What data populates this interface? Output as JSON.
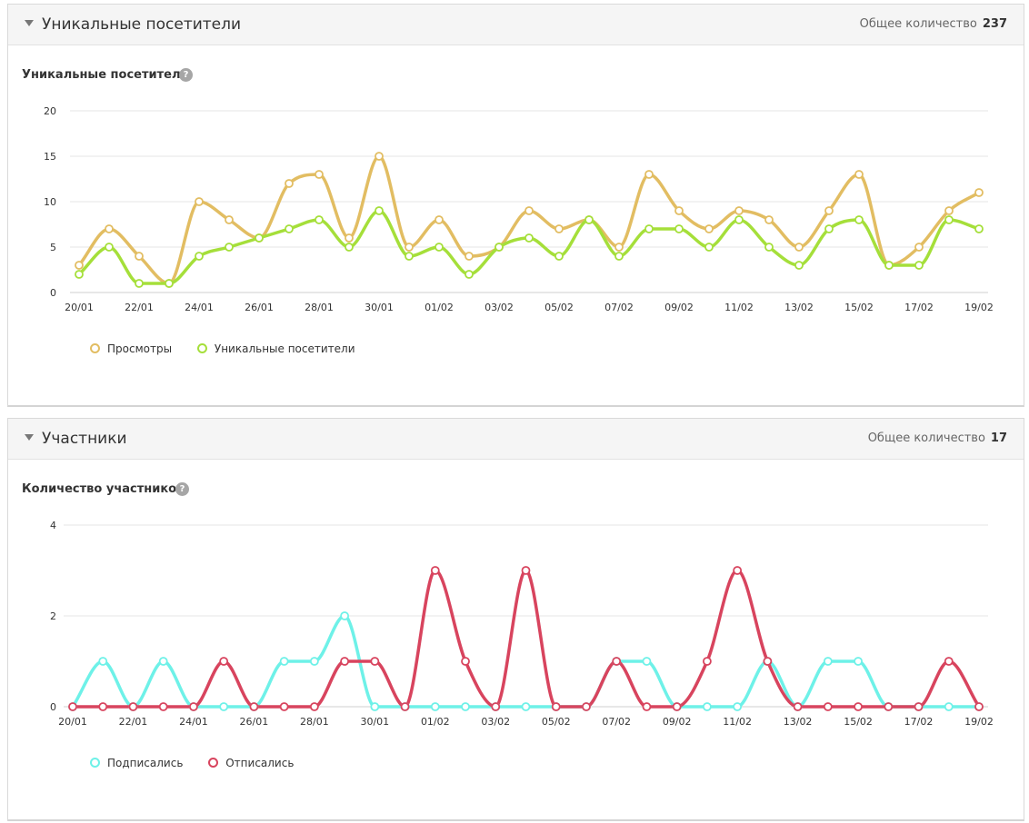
{
  "colors": {
    "views": "#e2bd62",
    "unique": "#a5df3a",
    "subscribed": "#6ef1e8",
    "unsubscribed": "#d8445e"
  },
  "panel1": {
    "title": "Уникальные посетители",
    "total_label": "Общее количество",
    "total_value": "237",
    "chart_title": "Уникальные посетители",
    "help": "?",
    "legend": [
      "Просмотры",
      "Уникальные посетители"
    ]
  },
  "panel2": {
    "title": "Участники",
    "total_label": "Общее количество",
    "total_value": "17",
    "chart_title": "Количество участников",
    "help": "?",
    "legend": [
      "Подписались",
      "Отписались"
    ]
  },
  "chart_data": [
    {
      "type": "line",
      "title": "Уникальные посетители",
      "ylim": [
        0,
        20
      ],
      "yticks": [
        0,
        5,
        10,
        15,
        20
      ],
      "grid": true,
      "legend_position": "bottom-left",
      "x": [
        "20/01",
        "21/01",
        "22/01",
        "23/01",
        "24/01",
        "25/01",
        "26/01",
        "27/01",
        "28/01",
        "29/01",
        "30/01",
        "31/01",
        "01/02",
        "02/02",
        "03/02",
        "04/02",
        "05/02",
        "06/02",
        "07/02",
        "08/02",
        "09/02",
        "10/02",
        "11/02",
        "12/02",
        "13/02",
        "14/02",
        "15/02",
        "16/02",
        "17/02",
        "18/02",
        "19/02"
      ],
      "xtick_labels": [
        "20/01",
        "22/01",
        "24/01",
        "26/01",
        "28/01",
        "30/01",
        "01/02",
        "03/02",
        "05/02",
        "07/02",
        "09/02",
        "11/02",
        "13/02",
        "15/02",
        "17/02",
        "19/02"
      ],
      "series": [
        {
          "name": "Просмотры",
          "values": [
            3,
            7,
            4,
            1,
            10,
            8,
            6,
            12,
            13,
            6,
            15,
            5,
            8,
            4,
            5,
            9,
            7,
            8,
            5,
            13,
            9,
            7,
            9,
            8,
            5,
            9,
            13,
            3,
            5,
            9,
            11
          ]
        },
        {
          "name": "Уникальные посетители",
          "values": [
            2,
            5,
            1,
            1,
            4,
            5,
            6,
            7,
            8,
            5,
            9,
            4,
            5,
            2,
            5,
            6,
            4,
            8,
            4,
            7,
            7,
            5,
            8,
            5,
            3,
            7,
            8,
            3,
            3,
            8,
            7
          ]
        }
      ]
    },
    {
      "type": "line",
      "title": "Количество участников",
      "ylim": [
        0,
        4
      ],
      "yticks": [
        0,
        2,
        4
      ],
      "grid": true,
      "legend_position": "bottom-left",
      "x": [
        "20/01",
        "21/01",
        "22/01",
        "23/01",
        "24/01",
        "25/01",
        "26/01",
        "27/01",
        "28/01",
        "29/01",
        "30/01",
        "31/01",
        "01/02",
        "02/02",
        "03/02",
        "04/02",
        "05/02",
        "06/02",
        "07/02",
        "08/02",
        "09/02",
        "10/02",
        "11/02",
        "12/02",
        "13/02",
        "14/02",
        "15/02",
        "16/02",
        "17/02",
        "18/02",
        "19/02"
      ],
      "xtick_labels": [
        "20/01",
        "22/01",
        "24/01",
        "26/01",
        "28/01",
        "30/01",
        "01/02",
        "03/02",
        "05/02",
        "07/02",
        "09/02",
        "11/02",
        "13/02",
        "15/02",
        "17/02",
        "19/02"
      ],
      "series": [
        {
          "name": "Подписались",
          "values": [
            0,
            1,
            0,
            1,
            0,
            0,
            0,
            1,
            1,
            2,
            0,
            0,
            0,
            0,
            0,
            0,
            0,
            0,
            1,
            1,
            0,
            0,
            0,
            1,
            0,
            1,
            1,
            0,
            0,
            0,
            0
          ]
        },
        {
          "name": "Отписались",
          "values": [
            0,
            0,
            0,
            0,
            0,
            1,
            0,
            0,
            0,
            1,
            1,
            0,
            3,
            1,
            0,
            3,
            0,
            0,
            1,
            0,
            0,
            1,
            3,
            1,
            0,
            0,
            0,
            0,
            0,
            1,
            0
          ]
        }
      ]
    }
  ]
}
